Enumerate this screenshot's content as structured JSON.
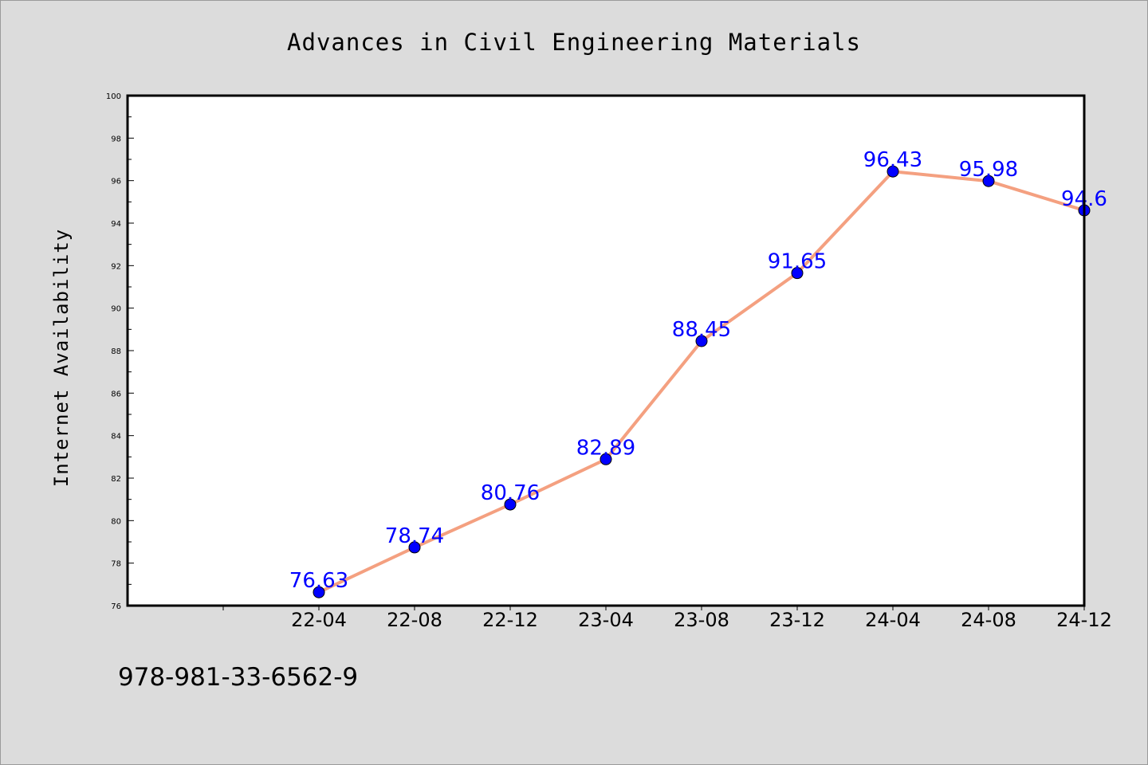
{
  "chart_data": {
    "type": "line",
    "title": "Advances in Civil Engineering Materials",
    "xlabel": "",
    "ylabel": "Internet Availability",
    "categories": [
      "22-04",
      "22-08",
      "22-12",
      "23-04",
      "23-08",
      "23-12",
      "24-04",
      "24-08",
      "24-12"
    ],
    "series": [
      {
        "values": [
          76.63,
          78.74,
          80.76,
          82.89,
          88.45,
          91.65,
          96.43,
          95.98,
          94.6
        ],
        "data_labels": [
          "76.63",
          "78.74",
          "80.76",
          "82.89",
          "88.45",
          "91.65",
          "96.43",
          "95.98",
          "94.6"
        ],
        "line_color": "#f4a080",
        "marker_color": "#0000ff",
        "label_color": "#0000ff"
      }
    ],
    "yticks": [
      "76",
      "78",
      "80",
      "82",
      "84",
      "86",
      "88",
      "90",
      "92",
      "94",
      "96",
      "98",
      "100"
    ],
    "ylim": [
      76,
      100
    ],
    "grid": false,
    "legend": "none"
  },
  "footnote": "978-981-33-6562-9"
}
